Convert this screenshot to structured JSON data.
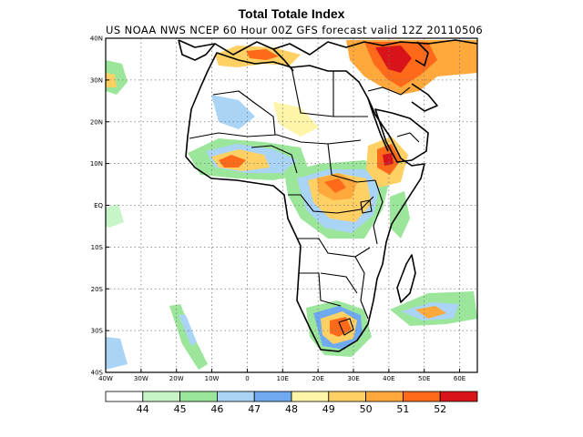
{
  "title": "Total Totale Index",
  "subtitle": "US NOAA NWS NCEP 60 Hour 00Z GFS forecast valid 12Z 20110506",
  "map": {
    "lon_range": [
      -40,
      65
    ],
    "lat_range": [
      -40,
      40
    ],
    "lat_labels": [
      "40N",
      "30N",
      "20N",
      "10N",
      "EQ",
      "10S",
      "20S",
      "30S",
      "40S"
    ],
    "lat_values": [
      40,
      30,
      20,
      10,
      0,
      -10,
      -20,
      -30,
      -40
    ],
    "lon_labels": [
      "40W",
      "30W",
      "20W",
      "10W",
      "0",
      "10E",
      "20E",
      "30E",
      "40E",
      "50E",
      "60E"
    ],
    "lon_values": [
      -40,
      -30,
      -20,
      -10,
      0,
      10,
      20,
      30,
      40,
      50,
      60
    ],
    "grid": true
  },
  "colorbar": {
    "colors": [
      "#ffffff",
      "#c8f5c8",
      "#9be69b",
      "#a9d4f5",
      "#6faaf0",
      "#fff5a8",
      "#ffd064",
      "#ffa83c",
      "#ff6a1a",
      "#d8141a"
    ],
    "labels": [
      "44",
      "45",
      "46",
      "47",
      "48",
      "49",
      "50",
      "51",
      "52"
    ]
  }
}
